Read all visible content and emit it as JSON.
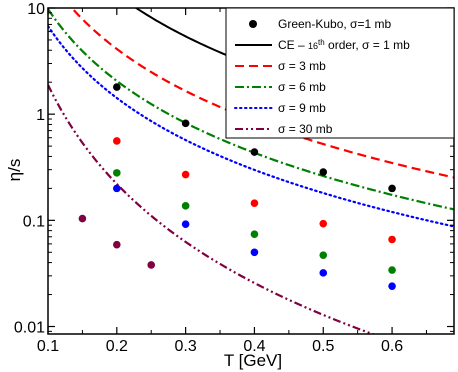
{
  "chart_data": {
    "type": "line",
    "xlabel": "T [GeV]",
    "ylabel": "η/s",
    "xlim": [
      0.1,
      0.69
    ],
    "ylim": [
      0.0085,
      10
    ],
    "y_scale": "log",
    "x_ticks": [
      0.1,
      0.2,
      0.3,
      0.4,
      0.5,
      0.6
    ],
    "x_tick_labels": [
      "0.1",
      "0.2",
      "0.3",
      "0.4",
      "0.5",
      "0.6"
    ],
    "y_ticks": [
      0.01,
      0.1,
      1,
      10
    ],
    "y_tick_labels": [
      "0.01",
      "0.1",
      "1",
      "10"
    ],
    "legend_position": "top-right",
    "series": [
      {
        "name": "Green-Kubo, σ=1 mb",
        "kind": "points",
        "color": "#000000",
        "x": [
          0.2,
          0.3,
          0.4,
          0.5,
          0.6
        ],
        "y": [
          1.8,
          0.82,
          0.44,
          0.285,
          0.2
        ]
      },
      {
        "name": "CE – 16th order, σ = 1 mb",
        "legend_main": "CE – ",
        "legend_num": "16",
        "legend_sup": "th",
        "legend_rest": " order, σ = 1 mb",
        "kind": "curve",
        "dash": "solid",
        "color": "#000000",
        "coef": 0.36,
        "exp": 2.25
      },
      {
        "name": "σ = 3 mb",
        "kind": "curve",
        "dash": "dashed",
        "color": "#ff0000",
        "coef": 0.11,
        "exp": 2.25,
        "points_x": [
          0.2,
          0.3,
          0.4,
          0.5,
          0.6
        ],
        "points_y": [
          0.56,
          0.27,
          0.145,
          0.093,
          0.066
        ]
      },
      {
        "name": "σ = 6 mb",
        "kind": "curve",
        "dash": "dashdot",
        "color": "#008000",
        "coef": 0.055,
        "exp": 2.25,
        "points_x": [
          0.2,
          0.3,
          0.4,
          0.5,
          0.6
        ],
        "points_y": [
          0.28,
          0.137,
          0.074,
          0.047,
          0.034
        ]
      },
      {
        "name": "σ = 9 mb",
        "kind": "curve",
        "dash": "dotted",
        "color": "#0000ff",
        "coef": 0.038,
        "exp": 2.25,
        "points_x": [
          0.2,
          0.3,
          0.4,
          0.5,
          0.6
        ],
        "points_y": [
          0.2,
          0.092,
          0.05,
          0.032,
          0.024
        ]
      },
      {
        "name": "σ = 30 mb",
        "kind": "curve",
        "dash": "dashdotdot",
        "color": "#800040",
        "coef": 0.0015,
        "exp": 3.1,
        "points_x": [
          0.15,
          0.2,
          0.25
        ],
        "points_y": [
          0.104,
          0.059,
          0.038
        ]
      }
    ]
  }
}
